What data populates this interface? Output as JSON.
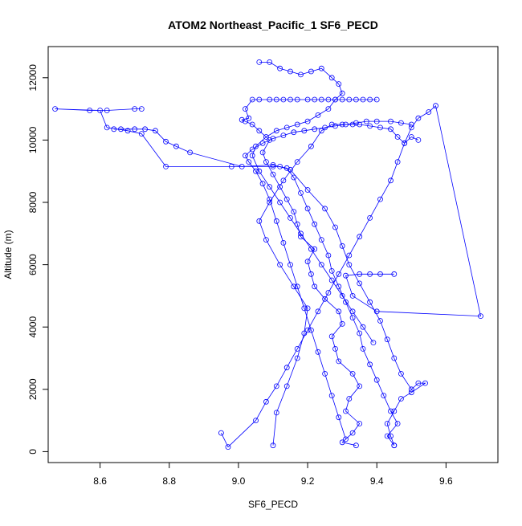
{
  "chart_data": {
    "type": "line",
    "title": "ATOM2 Northeast_Pacific_1 SF6_PECD",
    "xlabel": "SF6_PECD",
    "ylabel": "Altitude (m)",
    "xlim": [
      8.45,
      9.75
    ],
    "ylim": [
      -350,
      13000
    ],
    "x_ticks": [
      "8.6",
      "8.8",
      "9.0",
      "9.2",
      "9.4",
      "9.6"
    ],
    "y_ticks": [
      "0",
      "2000",
      "4000",
      "6000",
      "8000",
      "10000",
      "12000"
    ],
    "grid": false,
    "legend": "none",
    "markers": "open-circle",
    "line_color": "#0000ff",
    "series": [
      {
        "x": [
          9.34,
          9.3,
          9.33,
          9.35,
          9.31,
          9.32,
          9.35,
          9.33,
          9.29,
          9.28,
          9.27,
          9.3,
          9.29,
          9.25,
          9.22,
          9.21,
          9.2,
          9.22,
          9.18,
          9.17,
          9.16,
          9.14,
          9.12,
          9.1,
          9.08,
          9.07,
          9.09,
          9.06,
          9.04,
          9.02,
          9.01,
          9.03,
          9.02,
          9.04,
          9.06,
          9.09,
          9.11,
          9.13,
          9.15,
          9.17,
          9.2,
          9.22,
          9.24,
          9.26,
          9.28,
          9.3,
          9.32,
          9.34,
          9.36,
          9.38,
          9.4
        ],
        "y": [
          200,
          300,
          600,
          900,
          1300,
          1700,
          2100,
          2500,
          2900,
          3300,
          3700,
          4100,
          4500,
          4900,
          5300,
          5700,
          6100,
          6500,
          6900,
          7300,
          7700,
          8100,
          8500,
          8900,
          9300,
          9600,
          10000,
          10300,
          10500,
          10600,
          10650,
          10700,
          11000,
          11300,
          11300,
          11300,
          11300,
          11300,
          11300,
          11300,
          11300,
          11300,
          11300,
          11300,
          11300,
          11300,
          11300,
          11300,
          11300,
          11300,
          11300
        ]
      },
      {
        "x": [
          9.45,
          9.43,
          9.46,
          9.44,
          9.42,
          9.4,
          9.38,
          9.36,
          9.35,
          9.33,
          9.31,
          9.29,
          9.27,
          9.26,
          9.24,
          9.22,
          9.2,
          9.18,
          9.16,
          9.14,
          9.12,
          9.1,
          8.98,
          8.79,
          8.72,
          8.68,
          8.62,
          8.6,
          8.47,
          8.57,
          8.62,
          8.7,
          8.72
        ],
        "y": [
          200,
          500,
          900,
          1300,
          1800,
          2300,
          2800,
          3300,
          3800,
          4300,
          4800,
          5300,
          5800,
          6300,
          6800,
          7300,
          7800,
          8300,
          8800,
          9100,
          9150,
          9150,
          9150,
          9150,
          10200,
          10300,
          10400,
          10950,
          11000,
          10950,
          10950,
          11000,
          11000
        ]
      },
      {
        "x": [
          8.64,
          8.66,
          8.7,
          8.73,
          8.76,
          8.79,
          8.82,
          8.86,
          9.01,
          9.1,
          9.15,
          9.2,
          9.25,
          9.28,
          9.3,
          9.32,
          9.35,
          9.38,
          9.41,
          9.43,
          9.45,
          9.47,
          9.5,
          9.52,
          9.54,
          9.5,
          9.47,
          9.45,
          9.43,
          9.44,
          9.45
        ],
        "y": [
          10350,
          10350,
          10350,
          10350,
          10300,
          9950,
          9800,
          9600,
          9150,
          9200,
          9050,
          8400,
          7800,
          7200,
          6600,
          6000,
          5400,
          4800,
          4200,
          3600,
          3000,
          2500,
          2000,
          2200,
          2200,
          1900,
          1700,
          1300,
          900,
          500,
          200
        ]
      },
      {
        "x": [
          8.95,
          8.97,
          9.05,
          9.08,
          9.11,
          9.14,
          9.17,
          9.2,
          9.23,
          9.26,
          9.29,
          9.32,
          9.35,
          9.38,
          9.41,
          9.44,
          9.46,
          9.48,
          9.5,
          9.52,
          9.55,
          9.57,
          9.7,
          9.4,
          9.33,
          9.31,
          9.35,
          9.38,
          9.41,
          9.45
        ],
        "y": [
          600,
          150,
          1000,
          1600,
          2100,
          2700,
          3300,
          3900,
          4500,
          5100,
          5700,
          6300,
          6900,
          7500,
          8100,
          8700,
          9300,
          9900,
          10400,
          10700,
          10900,
          11100,
          4350,
          4500,
          5000,
          5650,
          5700,
          5700,
          5700,
          5700
        ]
      },
      {
        "x": [
          9.1,
          9.11,
          9.14,
          9.17,
          9.19,
          9.2,
          9.16,
          9.12,
          9.08,
          9.06,
          9.09,
          9.13,
          9.17,
          9.21,
          9.24,
          9.27,
          9.3,
          9.33,
          9.35,
          9.38,
          9.41,
          9.44,
          9.46,
          9.48,
          9.5,
          9.52
        ],
        "y": [
          200,
          1250,
          2100,
          3000,
          3800,
          4600,
          5300,
          6000,
          6800,
          7400,
          8000,
          8700,
          9300,
          9800,
          10300,
          10500,
          10500,
          10500,
          10500,
          10450,
          10400,
          10350,
          10100,
          9900,
          10100,
          10000
        ]
      },
      {
        "x": [
          9.06,
          9.09,
          9.12,
          9.15,
          9.18,
          9.21,
          9.24,
          9.27,
          9.29,
          9.3,
          9.28,
          9.26,
          9.23,
          9.2,
          9.17,
          9.14,
          9.11,
          9.08,
          9.05,
          9.04,
          9.06,
          9.09,
          9.12,
          9.15,
          9.18,
          9.21,
          9.24,
          9.27,
          9.3,
          9.33,
          9.36,
          9.39
        ],
        "y": [
          12500,
          12500,
          12300,
          12200,
          12100,
          12200,
          12300,
          12000,
          11800,
          11500,
          11300,
          11000,
          10800,
          10600,
          10500,
          10400,
          10300,
          10100,
          9800,
          9500,
          9000,
          8500,
          8000,
          7500,
          7000,
          6500,
          6000,
          5500,
          5000,
          4500,
          4000,
          3500
        ]
      },
      {
        "x": [
          9.31,
          9.29,
          9.27,
          9.25,
          9.23,
          9.21,
          9.19,
          9.17,
          9.15,
          9.13,
          9.11,
          9.09,
          9.07,
          9.05,
          9.03,
          9.02,
          9.04,
          9.07,
          9.1,
          9.13,
          9.16,
          9.19,
          9.22,
          9.25,
          9.28,
          9.31,
          9.34,
          9.37,
          9.4,
          9.44,
          9.47,
          9.5
        ],
        "y": [
          400,
          1100,
          1800,
          2500,
          3200,
          3900,
          4600,
          5300,
          6000,
          6700,
          7400,
          8100,
          8600,
          9000,
          9300,
          9500,
          9700,
          9900,
          10050,
          10150,
          10250,
          10300,
          10350,
          10400,
          10450,
          10500,
          10550,
          10600,
          10600,
          10600,
          10550,
          10500
        ]
      }
    ]
  }
}
